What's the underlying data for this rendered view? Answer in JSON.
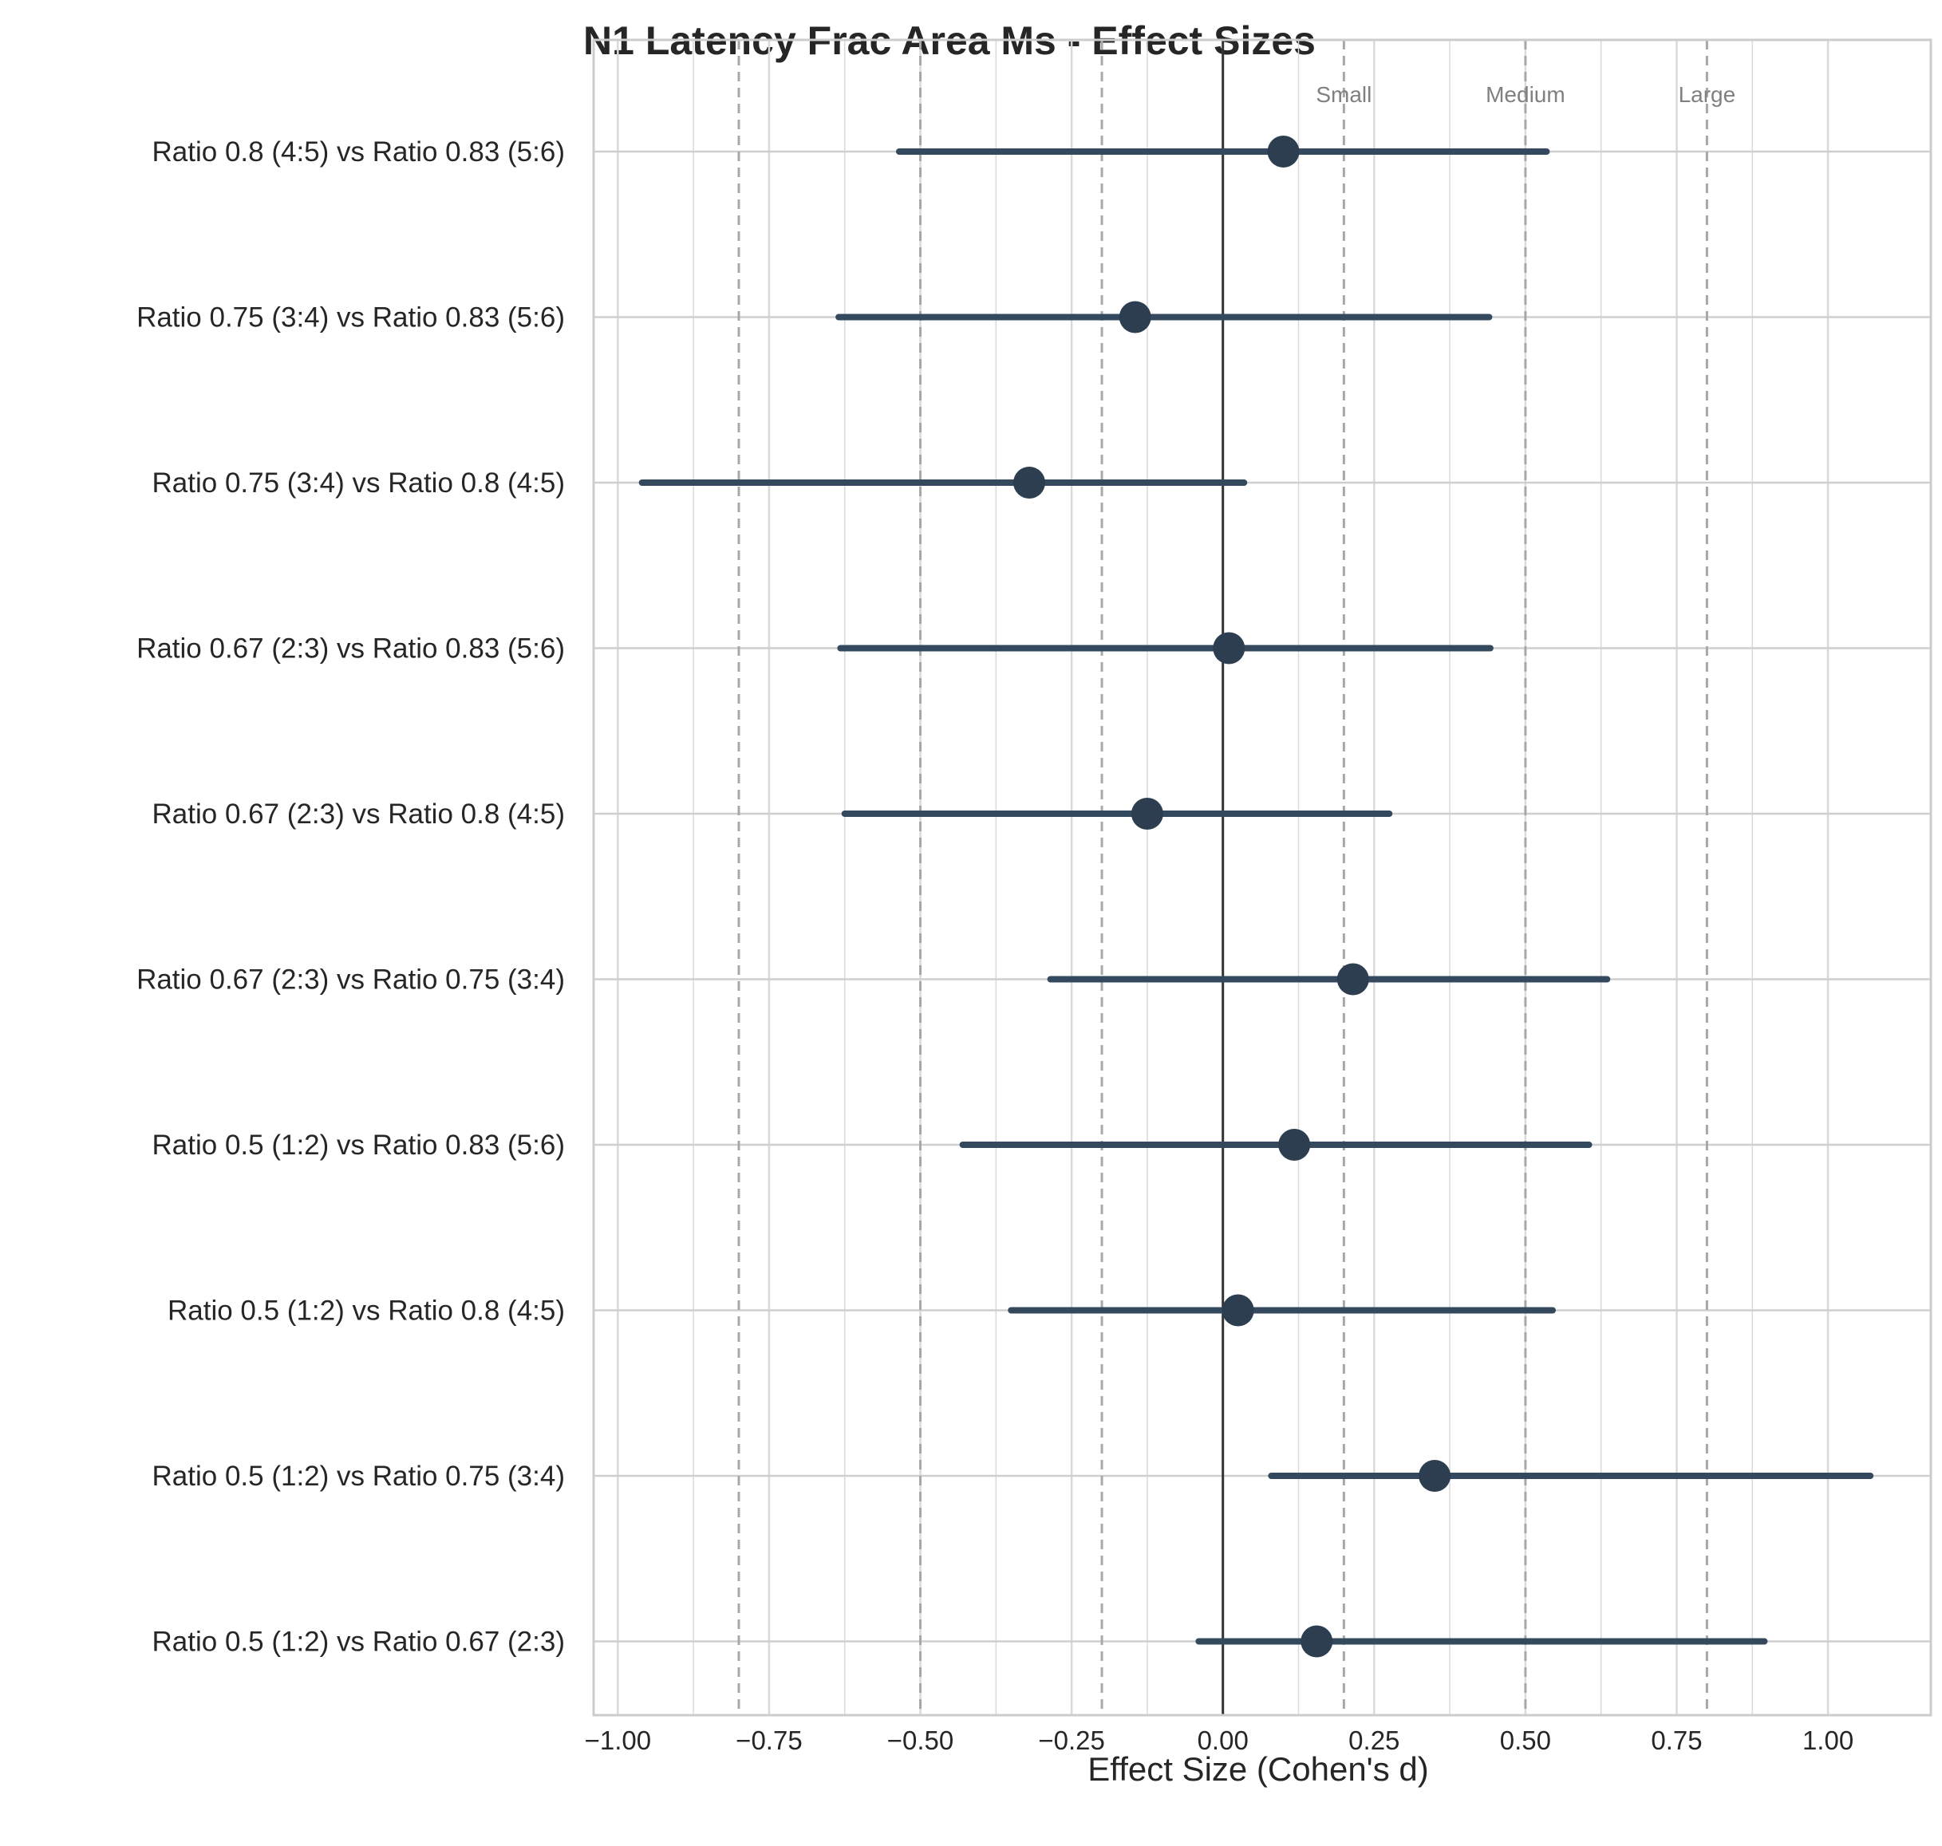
{
  "chart_data": {
    "type": "scatter",
    "subtype": "forest-plot",
    "title": "N1 Latency Frac Area Ms - Effect Sizes",
    "xlabel": "Effect Size (Cohen's d)",
    "ylabel": "",
    "xlim": [
      -1.04,
      1.17
    ],
    "xticks": [
      -1.0,
      -0.75,
      -0.5,
      -0.25,
      0.0,
      0.25,
      0.5,
      0.75,
      1.0
    ],
    "xtick_labels": [
      "−1.00",
      "−0.75",
      "−0.50",
      "−0.25",
      "0.00",
      "0.25",
      "0.50",
      "0.75",
      "1.00"
    ],
    "grid": true,
    "comparisons": [
      {
        "label": "Ratio 0.8 (4:5) vs Ratio 0.83 (5:6)",
        "d": 0.1,
        "ci_low": -0.535,
        "ci_high": 0.535
      },
      {
        "label": "Ratio 0.75 (3:4) vs Ratio 0.83 (5:6)",
        "d": -0.145,
        "ci_low": -0.635,
        "ci_high": 0.44
      },
      {
        "label": "Ratio 0.75 (3:4) vs Ratio 0.8 (4:5)",
        "d": -0.32,
        "ci_low": -0.96,
        "ci_high": 0.035
      },
      {
        "label": "Ratio 0.67 (2:3) vs Ratio 0.83 (5:6)",
        "d": 0.01,
        "ci_low": -0.632,
        "ci_high": 0.442
      },
      {
        "label": "Ratio 0.67 (2:3) vs Ratio 0.8 (4:5)",
        "d": -0.125,
        "ci_low": -0.625,
        "ci_high": 0.275
      },
      {
        "label": "Ratio 0.67 (2:3) vs Ratio 0.75 (3:4)",
        "d": 0.215,
        "ci_low": -0.285,
        "ci_high": 0.635
      },
      {
        "label": "Ratio 0.5 (1:2) vs Ratio 0.83 (5:6)",
        "d": 0.118,
        "ci_low": -0.43,
        "ci_high": 0.605
      },
      {
        "label": "Ratio 0.5 (1:2) vs Ratio 0.8 (4:5)",
        "d": 0.025,
        "ci_low": -0.35,
        "ci_high": 0.545
      },
      {
        "label": "Ratio 0.5 (1:2) vs Ratio 0.75 (3:4)",
        "d": 0.35,
        "ci_low": 0.08,
        "ci_high": 1.07
      },
      {
        "label": "Ratio 0.5 (1:2) vs Ratio 0.67 (2:3)",
        "d": 0.155,
        "ci_low": -0.04,
        "ci_high": 0.895
      }
    ],
    "reference_lines": [
      {
        "label": "",
        "value": -0.8
      },
      {
        "label": "",
        "value": -0.5
      },
      {
        "label": "",
        "value": -0.2
      },
      {
        "label": "Small",
        "value": 0.2
      },
      {
        "label": "Medium",
        "value": 0.5
      },
      {
        "label": "Large",
        "value": 0.8
      }
    ],
    "zero_line": 0.0,
    "colors": {
      "point": "#2c3e50",
      "ci_line": "#34495e",
      "grid": "#d9d9d9",
      "reference": "#a8a8a8",
      "zero": "#333333",
      "frame": "#cccccc"
    }
  }
}
